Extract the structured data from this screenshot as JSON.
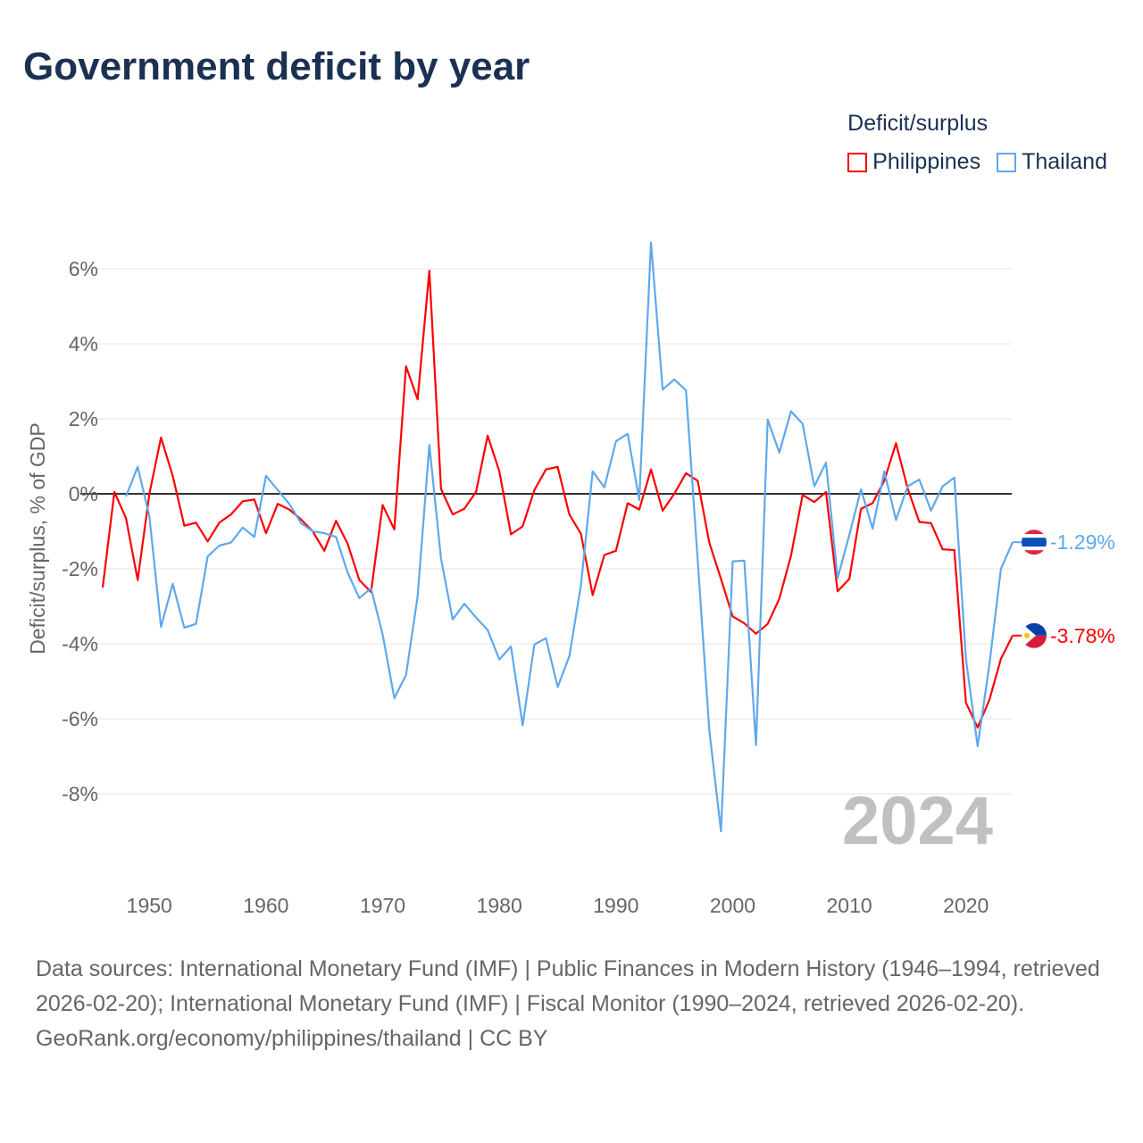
{
  "title": "Government deficit by year",
  "legend": {
    "title": "Deficit/surplus",
    "items": [
      {
        "label": "Philippines",
        "color": "#ff0000"
      },
      {
        "label": "Thailand",
        "color": "#5ea8ee"
      }
    ]
  },
  "footer": {
    "sources": "Data sources: International Monetary Fund (IMF) | Public Finances in Modern History (1946–1994, retrieved 2026-02-20); International Monetary Fund (IMF) | Fiscal Monitor (1990–2024, retrieved 2026-02-20).",
    "credit": "GeoRank.org/economy/philippines/thailand | CC BY"
  },
  "chart_data": {
    "type": "line",
    "title": "Government deficit by year",
    "ylabel": "Deficit/surplus, % of GDP",
    "xlabel": "",
    "year_watermark": "2024",
    "xlim": [
      1946,
      2024
    ],
    "ylim": [
      -10,
      7
    ],
    "yticks": [
      6,
      4,
      2,
      0,
      -2,
      -4,
      -6,
      -8
    ],
    "ytick_labels": [
      "6%",
      "4%",
      "2%",
      "0%",
      "-2%",
      "-4%",
      "-6%",
      "-8%"
    ],
    "xticks": [
      1950,
      1960,
      1970,
      1980,
      1990,
      2000,
      2010,
      2020
    ],
    "xtick_labels": [
      "1950",
      "1960",
      "1970",
      "1980",
      "1990",
      "2000",
      "2010",
      "2020"
    ],
    "grid": true,
    "legend_position": "top-right",
    "series": [
      {
        "name": "Philippines",
        "color": "#ff0000",
        "start_year": 1946,
        "end_label": "-3.78%",
        "values": [
          -2.5,
          0.05,
          -0.65,
          -2.3,
          0,
          1.5,
          0.48,
          -0.85,
          -0.77,
          -1.27,
          -0.77,
          -0.55,
          -0.2,
          -0.15,
          -1.05,
          -0.27,
          -0.42,
          -0.68,
          -1.0,
          -1.52,
          -0.72,
          -1.33,
          -2.3,
          -2.62,
          -0.3,
          -0.95,
          3.4,
          2.52,
          5.95,
          0.13,
          -0.55,
          -0.4,
          0.05,
          1.55,
          0.6,
          -1.08,
          -0.87,
          0.1,
          0.65,
          0.72,
          -0.55,
          -1.07,
          -2.7,
          -1.63,
          -1.52,
          -0.25,
          -0.42,
          0.65,
          -0.45,
          0,
          0.55,
          0.35,
          -1.3,
          -2.27,
          -3.27,
          -3.45,
          -3.73,
          -3.47,
          -2.8,
          -1.65,
          -0.03,
          -0.22,
          0.05,
          -2.6,
          -2.27,
          -0.4,
          -0.25,
          0.35,
          1.35,
          0.15,
          -0.75,
          -0.78,
          -1.48,
          -1.5,
          -5.57,
          -6.23,
          -5.5,
          -4.4,
          -3.78
        ]
      },
      {
        "name": "Thailand",
        "color": "#5ea8ee",
        "start_year": 1948,
        "end_label": "-1.29%",
        "values": [
          -0.07,
          0.72,
          -0.6,
          -3.55,
          -2.4,
          -3.57,
          -3.47,
          -1.67,
          -1.38,
          -1.3,
          -0.9,
          -1.15,
          0.48,
          0.1,
          -0.27,
          -0.78,
          -1.0,
          -1.05,
          -1.15,
          -2.1,
          -2.78,
          -2.52,
          -3.75,
          -5.45,
          -4.83,
          -2.73,
          1.3,
          -1.73,
          -3.35,
          -2.93,
          -3.3,
          -3.63,
          -4.42,
          -4.07,
          -6.17,
          -4.02,
          -3.85,
          -5.15,
          -4.33,
          -2.43,
          0.6,
          0.17,
          1.4,
          1.6,
          -0.17,
          6.7,
          2.78,
          3.05,
          2.76,
          -1.76,
          -6.3,
          -9.0,
          -1.8,
          -1.78,
          -6.7,
          1.98,
          1.1,
          2.2,
          1.87,
          0.2,
          0.83,
          -2.25,
          -1.1,
          0.12,
          -0.93,
          0.6,
          -0.7,
          0.2,
          0.38,
          -0.45,
          0.2,
          0.43,
          -4.4,
          -6.73,
          -4.57,
          -2.0,
          -1.29
        ]
      }
    ]
  }
}
